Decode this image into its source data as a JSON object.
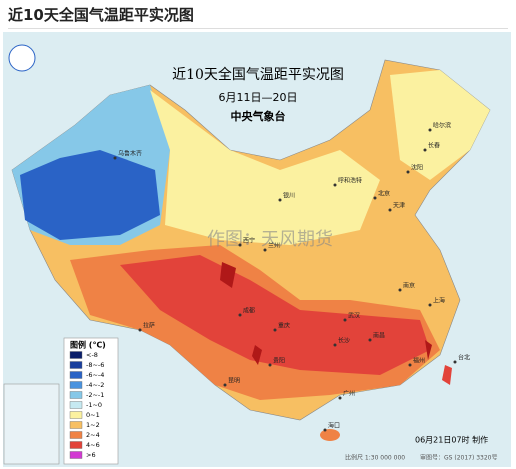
{
  "header": {
    "title": "近10天全国气温距平实况图"
  },
  "map": {
    "title": "近10天全国气温距平实况图",
    "period": "6月11日—20日",
    "issuer": "中央气象台",
    "watermark": "作图：天风期货"
  },
  "legend": {
    "title": "图例 (℃)",
    "items": [
      {
        "label": "<-8",
        "color": "#0b1f6b"
      },
      {
        "label": "-8~-6",
        "color": "#1a3f9e"
      },
      {
        "label": "-6~-4",
        "color": "#2a63c6"
      },
      {
        "label": "-4~-2",
        "color": "#4a93df"
      },
      {
        "label": "-2~-1",
        "color": "#86c8e8"
      },
      {
        "label": "-1~0",
        "color": "#c6e9f1"
      },
      {
        "label": "0~1",
        "color": "#fbf1a0"
      },
      {
        "label": "1~2",
        "color": "#f7bf62"
      },
      {
        "label": "2~4",
        "color": "#ef8245"
      },
      {
        "label": "4~6",
        "color": "#e2433a"
      },
      {
        "label": ">6",
        "color": "#d23ad2"
      }
    ]
  },
  "cities": [
    {
      "name": "乌鲁木齐"
    },
    {
      "name": "哈尔滨"
    },
    {
      "name": "长春"
    },
    {
      "name": "沈阳"
    },
    {
      "name": "北京"
    },
    {
      "name": "天津"
    },
    {
      "name": "呼和浩特"
    },
    {
      "name": "银川"
    },
    {
      "name": "兰州"
    },
    {
      "name": "西宁"
    },
    {
      "name": "拉萨"
    },
    {
      "name": "成都"
    },
    {
      "name": "重庆"
    },
    {
      "name": "武汉"
    },
    {
      "name": "南京"
    },
    {
      "name": "上海"
    },
    {
      "name": "长沙"
    },
    {
      "name": "南昌"
    },
    {
      "name": "福州"
    },
    {
      "name": "昆明"
    },
    {
      "name": "贵阳"
    },
    {
      "name": "广州"
    },
    {
      "name": "海口"
    },
    {
      "name": "台北"
    }
  ],
  "footer": {
    "made": "06月21日07时 制作",
    "scale": "比例尺 1:30 000 000",
    "approval": "审图号：GS (2017) 3320号"
  }
}
